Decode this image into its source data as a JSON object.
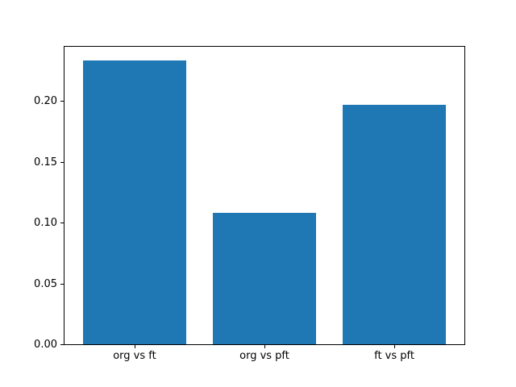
{
  "chart_data": {
    "type": "bar",
    "categories": [
      "org vs ft",
      "org vs pft",
      "ft vs pft"
    ],
    "values": [
      0.233,
      0.108,
      0.197
    ],
    "title": "",
    "xlabel": "",
    "ylabel": "",
    "ylim": [
      0,
      0.2444
    ],
    "yticks": [
      0.0,
      0.05,
      0.1,
      0.15,
      0.2
    ],
    "ytick_labels": [
      "0.00",
      "0.05",
      "0.10",
      "0.15",
      "0.20"
    ],
    "bar_color": "#1f77b4",
    "axis_color": "#000000",
    "background_color": "#ffffff",
    "grid": false,
    "legend": "none"
  }
}
